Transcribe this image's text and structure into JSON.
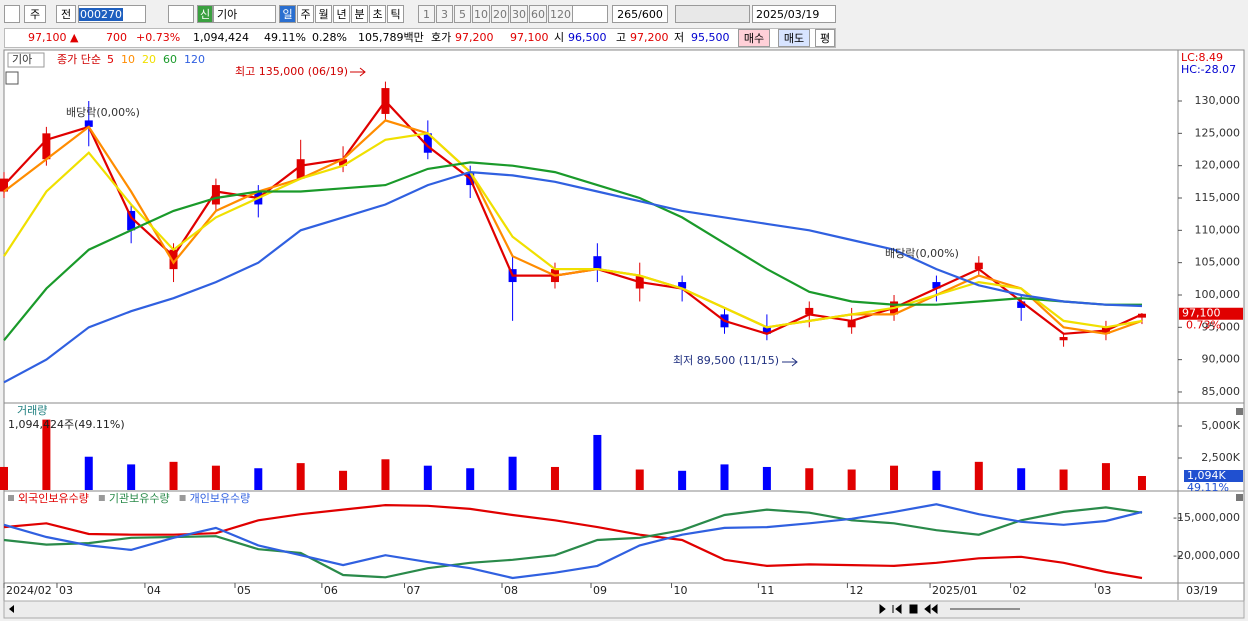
{
  "toolbar": {
    "market": "주",
    "prev": "전",
    "code": "000270",
    "badge": "신",
    "name": "기아",
    "periods": [
      "일",
      "주",
      "월",
      "년",
      "분",
      "초",
      "틱"
    ],
    "intervals": [
      "1",
      "3",
      "5",
      "10",
      "20",
      "30",
      "60",
      "120"
    ],
    "count": "265/600",
    "date": "2025/03/19"
  },
  "quote": {
    "price": "97,100 ▲",
    "change": "700",
    "change_pct": "+0.73%",
    "volume": "1,094,424",
    "volume_ratio": "49.11%",
    "turnover": "0.28%",
    "amount": "105,789백만",
    "bid_label": "호가",
    "ask": "97,200",
    "bid": "97,100",
    "open_label": "시",
    "open": "96,500",
    "high_label": "고",
    "high": "97,200",
    "low_label": "저",
    "low": "95,500",
    "buy": "매수",
    "sell": "매도",
    "avg": "평"
  },
  "chart_data": [
    {
      "type": "candlestick",
      "name": "기아",
      "legend_title": "종가 단순",
      "up_color": "#e00000",
      "down_color": "#0000ff",
      "x": [
        0,
        2,
        4,
        6,
        8,
        10,
        12,
        14,
        16,
        18,
        20,
        22,
        24,
        26,
        28,
        30,
        32,
        34,
        36,
        38,
        40,
        42,
        44,
        46,
        48,
        50,
        52,
        53.7
      ],
      "open": [
        116000,
        121000,
        127000,
        113000,
        104000,
        114000,
        116000,
        118000,
        120000,
        128000,
        125000,
        119000,
        104000,
        102000,
        106000,
        101000,
        102000,
        97000,
        95000,
        97000,
        95000,
        97000,
        102000,
        104000,
        99000,
        93000,
        94000,
        96500
      ],
      "high": [
        119000,
        126000,
        130000,
        114000,
        108000,
        118000,
        117000,
        124000,
        123000,
        133000,
        127000,
        120000,
        106000,
        105000,
        108000,
        105000,
        103000,
        98000,
        97000,
        99000,
        98000,
        100000,
        103000,
        106000,
        100000,
        94000,
        96000,
        97200
      ],
      "low": [
        115000,
        120000,
        123000,
        108000,
        102000,
        113000,
        112000,
        118000,
        119000,
        127000,
        121000,
        115000,
        96000,
        101000,
        102000,
        99000,
        99000,
        94000,
        93000,
        95000,
        94000,
        96000,
        99000,
        103000,
        96000,
        92000,
        93000,
        95500
      ],
      "close": [
        118000,
        125000,
        126000,
        110000,
        107000,
        117000,
        114000,
        121000,
        121000,
        132000,
        122000,
        117000,
        102000,
        104000,
        104000,
        103000,
        101000,
        95000,
        94000,
        98000,
        96000,
        99000,
        101000,
        105000,
        98000,
        93500,
        95000,
        97100
      ],
      "series": [
        {
          "name": "5",
          "color": "#e00000",
          "values": [
            117000,
            124000,
            126000,
            112000,
            106000,
            116000,
            115000,
            120000,
            121000,
            130000,
            123000,
            118000,
            103000,
            103000,
            104000,
            102000,
            101000,
            96000,
            94000,
            97000,
            96000,
            98000,
            101000,
            104000,
            99000,
            94000,
            94500,
            97000
          ]
        },
        {
          "name": "10",
          "color": "#ff8c00",
          "values": [
            116000,
            121000,
            126000,
            116000,
            105000,
            113000,
            116000,
            118000,
            121000,
            127000,
            125000,
            119000,
            106000,
            103000,
            104000,
            103000,
            101000,
            98000,
            95000,
            96000,
            97000,
            97000,
            100000,
            103000,
            101000,
            95000,
            94000,
            96000
          ]
        },
        {
          "name": "20",
          "color": "#f0e000",
          "values": [
            106000,
            116000,
            122000,
            114000,
            107000,
            112000,
            115000,
            118000,
            120000,
            124000,
            125000,
            119000,
            109000,
            104000,
            104000,
            103000,
            101000,
            98000,
            95000,
            96000,
            97000,
            98000,
            100000,
            102000,
            101000,
            96000,
            95000,
            96000
          ]
        },
        {
          "name": "60",
          "color": "#1a9a2a",
          "values": [
            93000,
            101000,
            107000,
            110000,
            113000,
            115000,
            116000,
            116000,
            116500,
            117000,
            119500,
            120500,
            120000,
            119000,
            117000,
            115000,
            112000,
            108000,
            104000,
            100500,
            99000,
            98500,
            98500,
            99000,
            99500,
            99000,
            98500,
            98500
          ]
        },
        {
          "name": "120",
          "color": "#3060e0",
          "values": [
            86500,
            90000,
            95000,
            97500,
            99500,
            102000,
            105000,
            110000,
            112000,
            114000,
            117000,
            119000,
            118500,
            117500,
            116000,
            114500,
            113000,
            112000,
            111000,
            110000,
            108500,
            107000,
            104000,
            101500,
            100000,
            99000,
            98500,
            98300
          ]
        }
      ],
      "xlim": [
        0,
        55.4
      ],
      "xticks": [
        {
          "value": 0,
          "label": "2024/02"
        },
        {
          "value": 2.5,
          "label": "03"
        },
        {
          "value": 6.65,
          "label": "04"
        },
        {
          "value": 10.9,
          "label": "05"
        },
        {
          "value": 15,
          "label": "06"
        },
        {
          "value": 18.9,
          "label": "07"
        },
        {
          "value": 23.5,
          "label": "08"
        },
        {
          "value": 27.7,
          "label": "09"
        },
        {
          "value": 31.5,
          "label": "10"
        },
        {
          "value": 35.6,
          "label": "11"
        },
        {
          "value": 39.8,
          "label": "12"
        },
        {
          "value": 43.7,
          "label": "2025/01"
        },
        {
          "value": 47.5,
          "label": "02"
        },
        {
          "value": 51.5,
          "label": "03"
        }
      ],
      "x_end_label": "03/19",
      "ylim": [
        83450,
        137580
      ],
      "yticks": [
        {
          "value": 85000,
          "label": "85,000"
        },
        {
          "value": 90000,
          "label": "90,000"
        },
        {
          "value": 95000,
          "label": "95,000"
        },
        {
          "value": 100000,
          "label": "100,000"
        },
        {
          "value": 105000,
          "label": "105,000"
        },
        {
          "value": 110000,
          "label": "110,000"
        },
        {
          "value": 115000,
          "label": "115,000"
        },
        {
          "value": 120000,
          "label": "120,000"
        },
        {
          "value": 125000,
          "label": "125,000"
        },
        {
          "value": 130000,
          "label": "130,000"
        }
      ],
      "annotations": [
        "최고 135,000 (06/19)",
        "최저 89,500 (11/15)",
        "배당락(0,00%)",
        "배당락(0,00%)"
      ],
      "lc": "LC:8.49",
      "hc": "HC:-28.07",
      "last_label": "97,100",
      "last_pct": "0.73%"
    },
    {
      "type": "bar",
      "name": "거래량",
      "summary": "1,094,424주(49.11%)",
      "x": [
        0,
        2,
        4,
        6,
        8,
        10,
        12,
        14,
        16,
        18,
        20,
        22,
        24,
        26,
        28,
        30,
        32,
        34,
        36,
        38,
        40,
        42,
        44,
        46,
        48,
        50,
        52,
        53.7
      ],
      "values": [
        1800,
        5500,
        2600,
        2000,
        2200,
        1900,
        1700,
        2100,
        1500,
        2400,
        1900,
        1700,
        2600,
        1800,
        4300,
        1600,
        1500,
        2000,
        1800,
        1700,
        1600,
        1900,
        1500,
        2200,
        1700,
        1600,
        2100,
        1094
      ],
      "xlim": [
        0,
        55.4
      ],
      "ylim": [
        0,
        6719
      ],
      "yticks": [
        {
          "value": 2500,
          "label": "2,500K"
        },
        {
          "value": 5000,
          "label": "5,000K"
        }
      ],
      "last_label": "1,094K",
      "last_pct": "49.11%"
    },
    {
      "type": "line",
      "x": [
        0,
        2,
        4,
        6,
        8,
        10,
        12,
        14,
        16,
        18,
        20,
        22,
        24,
        26,
        28,
        30,
        32,
        34,
        36,
        38,
        40,
        42,
        44,
        46,
        48,
        50,
        52,
        53.7
      ],
      "series": [
        {
          "name": "외국인보유수량",
          "color": "#e00000",
          "values": [
            -16200000,
            -15700000,
            -17100000,
            -17200000,
            -17200000,
            -17000000,
            -15300000,
            -14500000,
            -13900000,
            -13300000,
            -13400000,
            -13800000,
            -14600000,
            -15300000,
            -16200000,
            -17200000,
            -17900000,
            -20500000,
            -21300000,
            -21100000,
            -21200000,
            -21300000,
            -20900000,
            -20300000,
            -20100000,
            -20900000,
            -22100000,
            -22900000
          ]
        },
        {
          "name": "기관보유수량",
          "color": "#2a8a4a",
          "values": [
            -17900000,
            -18500000,
            -18300000,
            -17600000,
            -17500000,
            -17400000,
            -19100000,
            -19600000,
            -22500000,
            -22800000,
            -21600000,
            -20900000,
            -20500000,
            -19900000,
            -17900000,
            -17600000,
            -16600000,
            -14600000,
            -13900000,
            -14300000,
            -15300000,
            -15700000,
            -16600000,
            -17200000,
            -15300000,
            -14200000,
            -13600000,
            -14300000
          ]
        },
        {
          "name": "개인보유수량",
          "color": "#3060e0",
          "values": [
            -15900000,
            -17500000,
            -18600000,
            -19200000,
            -17600000,
            -16300000,
            -18600000,
            -19900000,
            -21200000,
            -19900000,
            -20800000,
            -21600000,
            -22900000,
            -22200000,
            -21300000,
            -18600000,
            -17200000,
            -16300000,
            -16200000,
            -15700000,
            -15100000,
            -14200000,
            -13200000,
            -14500000,
            -15500000,
            -15900000,
            -15400000,
            -14200000
          ]
        }
      ],
      "xlim": [
        0,
        55.4
      ],
      "ylim": [
        -23420000,
        -11580000
      ],
      "yticks": [
        {
          "value": -20000000,
          "label": "-20,000,000"
        },
        {
          "value": -15000000,
          "label": "-15,000,000"
        }
      ]
    }
  ]
}
